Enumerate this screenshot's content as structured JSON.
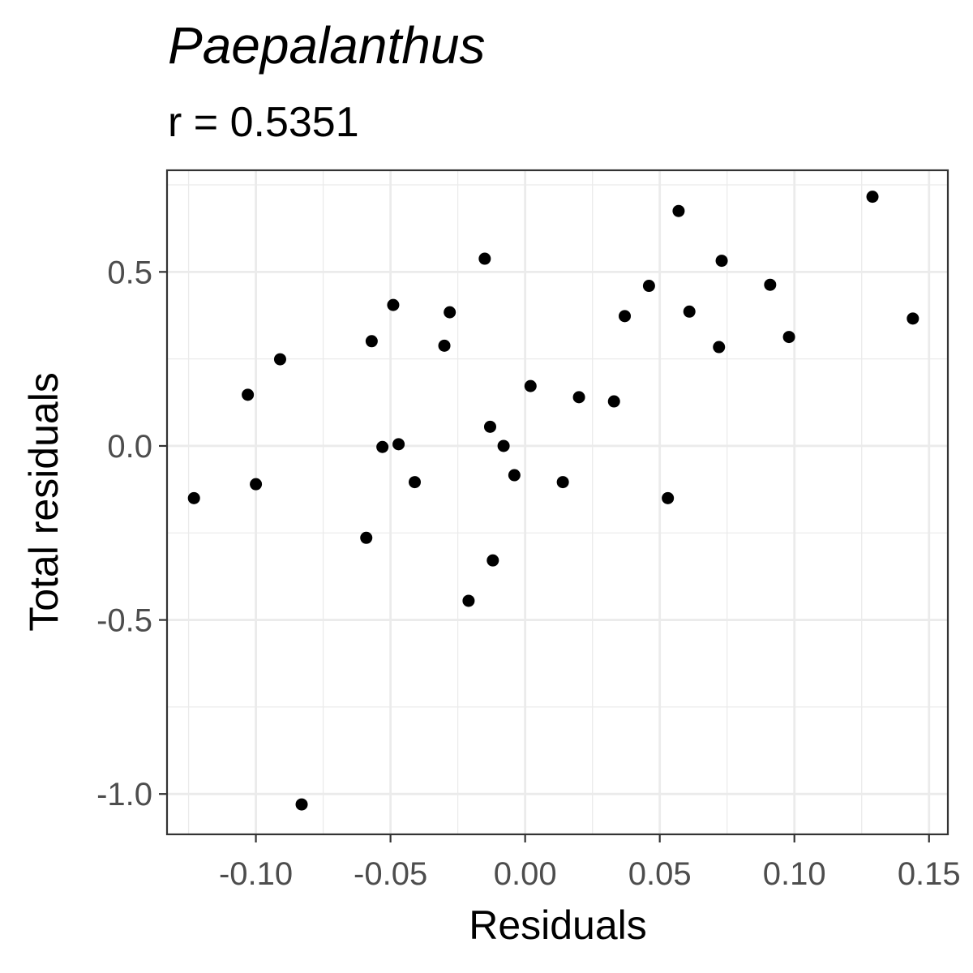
{
  "chart_data": {
    "type": "scatter",
    "title": "Paepalanthus",
    "subtitle": "r = 0.5351",
    "xlabel": "Residuals",
    "ylabel": "Total residuals",
    "xlim": [
      -0.133,
      0.157
    ],
    "ylim": [
      -1.116,
      0.792
    ],
    "x_ticks": [
      -0.1,
      -0.05,
      0.0,
      0.05,
      0.1,
      0.15
    ],
    "x_tick_labels": [
      "-0.10",
      "-0.05",
      "0.00",
      "0.05",
      "0.10",
      "0.15"
    ],
    "y_ticks": [
      -1.0,
      -0.5,
      0.0,
      0.5
    ],
    "y_tick_labels": [
      "-1.0",
      "-0.5",
      "0.0",
      "0.5"
    ],
    "grid": true,
    "point_color": "#000000",
    "points": [
      {
        "x": -0.123,
        "y": -0.15
      },
      {
        "x": -0.103,
        "y": 0.147
      },
      {
        "x": -0.1,
        "y": -0.11
      },
      {
        "x": -0.091,
        "y": 0.249
      },
      {
        "x": -0.083,
        "y": -1.03
      },
      {
        "x": -0.059,
        "y": -0.264
      },
      {
        "x": -0.057,
        "y": 0.301
      },
      {
        "x": -0.053,
        "y": -0.003
      },
      {
        "x": -0.049,
        "y": 0.405
      },
      {
        "x": -0.047,
        "y": 0.005
      },
      {
        "x": -0.041,
        "y": -0.104
      },
      {
        "x": -0.03,
        "y": 0.288
      },
      {
        "x": -0.028,
        "y": 0.384
      },
      {
        "x": -0.021,
        "y": -0.445
      },
      {
        "x": -0.015,
        "y": 0.538
      },
      {
        "x": -0.013,
        "y": 0.055
      },
      {
        "x": -0.012,
        "y": -0.329
      },
      {
        "x": -0.008,
        "y": 0.0
      },
      {
        "x": -0.004,
        "y": -0.084
      },
      {
        "x": 0.002,
        "y": 0.172
      },
      {
        "x": 0.014,
        "y": -0.104
      },
      {
        "x": 0.02,
        "y": 0.14
      },
      {
        "x": 0.033,
        "y": 0.128
      },
      {
        "x": 0.037,
        "y": 0.373
      },
      {
        "x": 0.046,
        "y": 0.46
      },
      {
        "x": 0.053,
        "y": -0.15
      },
      {
        "x": 0.057,
        "y": 0.675
      },
      {
        "x": 0.061,
        "y": 0.386
      },
      {
        "x": 0.072,
        "y": 0.284
      },
      {
        "x": 0.073,
        "y": 0.532
      },
      {
        "x": 0.091,
        "y": 0.463
      },
      {
        "x": 0.098,
        "y": 0.313
      },
      {
        "x": 0.129,
        "y": 0.716
      },
      {
        "x": 0.144,
        "y": 0.366
      }
    ]
  }
}
